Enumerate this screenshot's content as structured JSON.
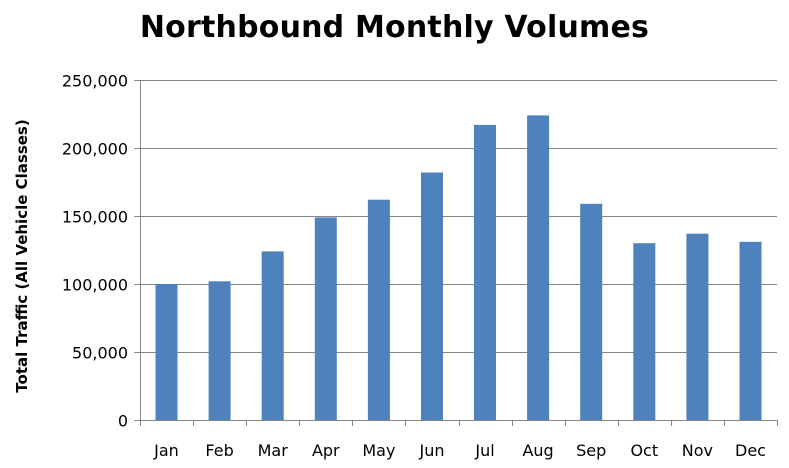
{
  "chart_data": {
    "type": "bar",
    "title": "Northbound Monthly Volumes",
    "xlabel": "",
    "ylabel": "Total Traffic (All Vehicle Classes)",
    "categories": [
      "Jan",
      "Feb",
      "Mar",
      "Apr",
      "May",
      "Jun",
      "Jul",
      "Aug",
      "Sep",
      "Oct",
      "Nov",
      "Dec"
    ],
    "values": [
      100000,
      102000,
      124000,
      149000,
      162000,
      182000,
      217000,
      224000,
      159000,
      130000,
      137000,
      131000
    ],
    "ylim": [
      0,
      250000
    ],
    "yticks": [
      0,
      50000,
      100000,
      150000,
      200000,
      250000
    ],
    "ytick_labels": [
      "0",
      "50,000",
      "100,000",
      "150,000",
      "200,000",
      "250,000"
    ],
    "grid": true,
    "legend": "none",
    "bar_color": "#4f81bd"
  }
}
